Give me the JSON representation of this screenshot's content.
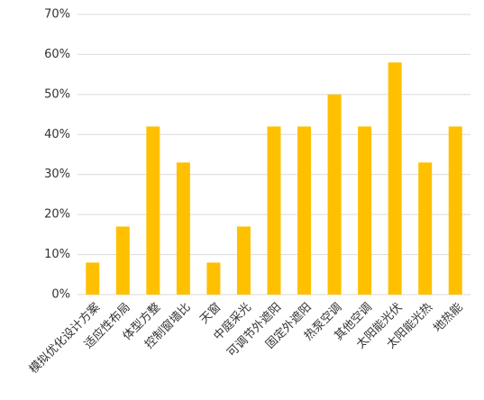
{
  "chart_data": {
    "type": "bar",
    "categories": [
      "模拟优化设计方案",
      "适应性布局",
      "体型方整",
      "控制窗墙比",
      "天窗",
      "中庭采光",
      "可调节外遮阳",
      "固定外遮阳",
      "热泵空调",
      "其他空调",
      "太阳能光伏",
      "太阳能光热",
      "地热能"
    ],
    "values": [
      8,
      17,
      42,
      33,
      8,
      17,
      42,
      42,
      50,
      42,
      58,
      33,
      42
    ],
    "color": "#ffc000",
    "ylim": [
      0,
      70
    ],
    "yticks": [
      {
        "value": 0,
        "label": "0%"
      },
      {
        "value": 10,
        "label": "10%"
      },
      {
        "value": 20,
        "label": "20%"
      },
      {
        "value": 30,
        "label": "30%"
      },
      {
        "value": 40,
        "label": "40%"
      },
      {
        "value": 50,
        "label": "50%"
      },
      {
        "value": 60,
        "label": "60%"
      },
      {
        "value": 70,
        "label": "70%"
      }
    ],
    "grid": true
  }
}
